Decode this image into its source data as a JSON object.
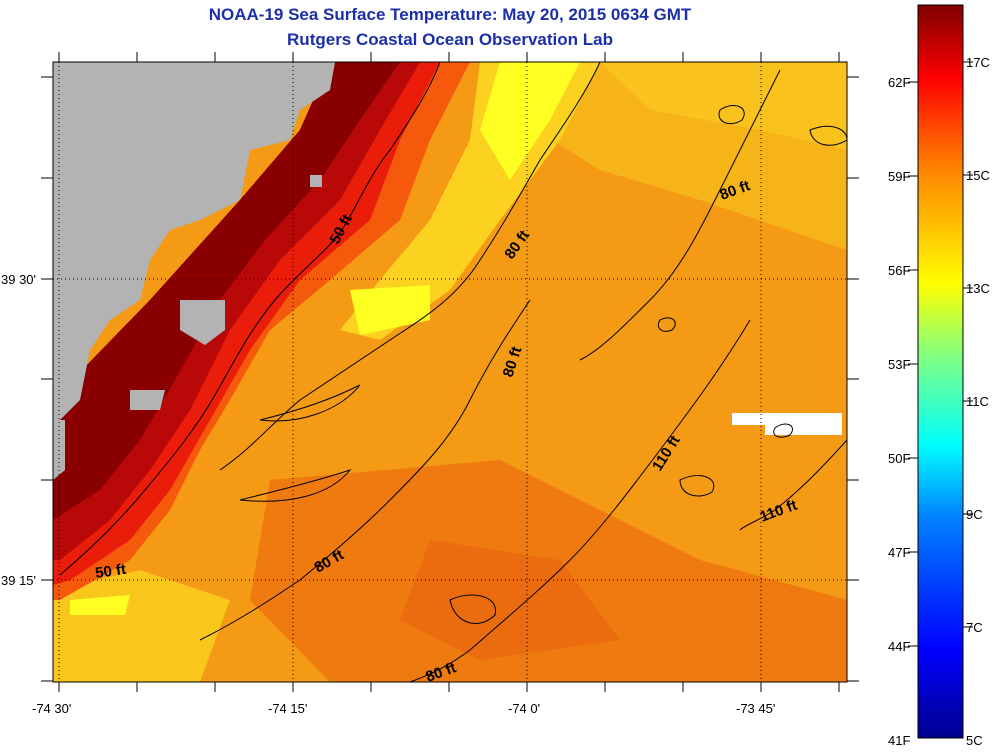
{
  "title": {
    "line1": "NOAA-19 Sea Surface Temperature:  May 20, 2015 0634 GMT",
    "line2": "Rutgers Coastal Ocean Observation Lab"
  },
  "axes": {
    "x_ticks": [
      "-74 30'",
      "-74 15'",
      "-74 0'",
      "-73 45'"
    ],
    "y_ticks": [
      "39 30'",
      "39 15'"
    ]
  },
  "contour_labels": [
    "50 ft",
    "50 ft",
    "80 ft",
    "80 ft",
    "80 ft",
    "80 ft",
    "80 ft",
    "110 ft",
    "110 ft"
  ],
  "colorbar": {
    "fahrenheit": [
      "62F",
      "59F",
      "56F",
      "53F",
      "50F",
      "47F",
      "44F",
      "41F"
    ],
    "celsius": [
      "17C",
      "15C",
      "13C",
      "11C",
      "9C",
      "7C",
      "5C"
    ],
    "min_c": 5,
    "max_c": 17.9
  },
  "colors": {
    "land": "#b3b3b3",
    "cloud_mask": "#ffffff",
    "title": "#1c2fa8"
  }
}
